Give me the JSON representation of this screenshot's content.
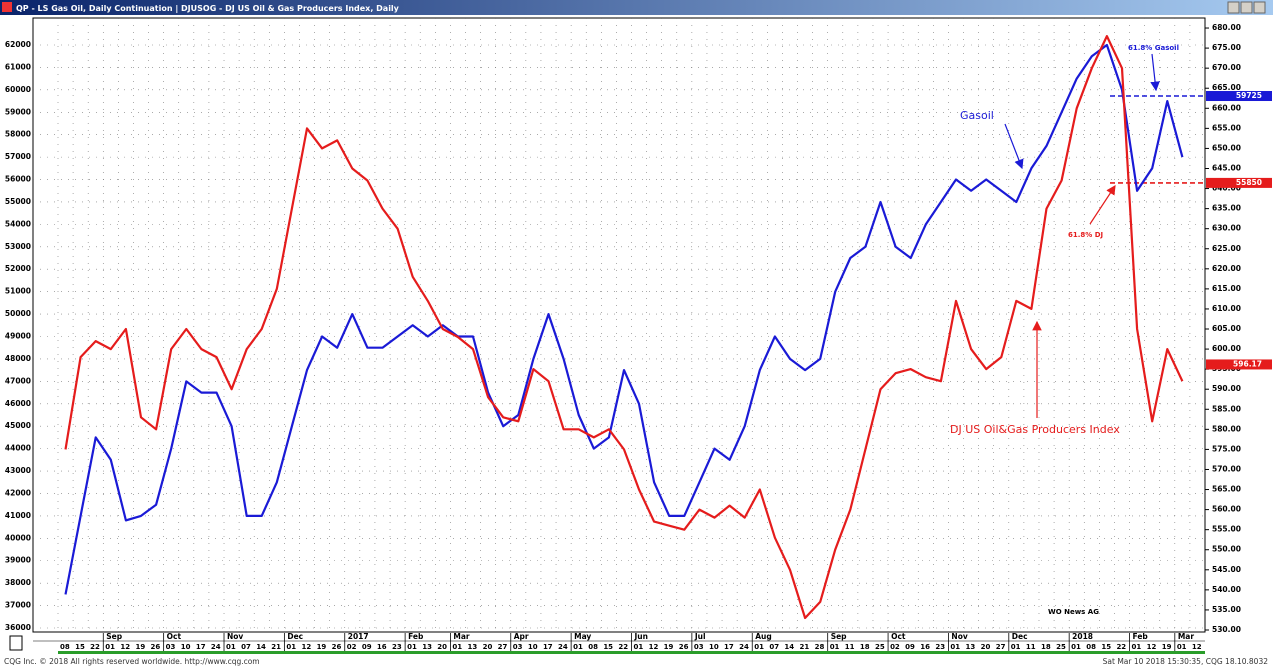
{
  "chart_data": {
    "type": "line",
    "series": [
      {
        "name": "QP - LS Gas Oil, Daily Continuation",
        "color": "#1a1ad6",
        "axis": "y",
        "values": [
          37500,
          41000,
          44500,
          43500,
          40800,
          41000,
          41500,
          44000,
          47000,
          46500,
          46500,
          45000,
          41000,
          41000,
          42500,
          45000,
          47500,
          49000,
          48500,
          50000,
          48500,
          48500,
          49000,
          49500,
          49000,
          49500,
          49000,
          49000,
          46500,
          45000,
          45500,
          48000,
          50000,
          48000,
          45500,
          44000,
          44500,
          47500,
          46000,
          42500,
          41000,
          41000,
          42500,
          44000,
          43500,
          45000,
          47500,
          49000,
          48000,
          47500,
          48000,
          51000,
          52500,
          53000,
          55000,
          53000,
          52500,
          54000,
          55000,
          56000,
          55500,
          56000,
          55500,
          55000,
          56500,
          57500,
          59000,
          60500,
          61500,
          62000,
          60000,
          55500,
          56500,
          59500,
          57000,
          null
        ]
      },
      {
        "name": "DJUSOG - DJ US Oil & Gas Producers Index, Daily",
        "color": "#e51c1c",
        "axis": "y2",
        "values": [
          575,
          598,
          602,
          600,
          605,
          583,
          580,
          600,
          605,
          600,
          598,
          590,
          600,
          605,
          615,
          635,
          655,
          650,
          652,
          645,
          642,
          635,
          630,
          618,
          612,
          605,
          603,
          600,
          588,
          583,
          582,
          595,
          592,
          580,
          580,
          578,
          580,
          575,
          565,
          557,
          556,
          555,
          560,
          558,
          561,
          558,
          565,
          553,
          545,
          533,
          537,
          550,
          560,
          575,
          590,
          594,
          595,
          593,
          592,
          612,
          600,
          595,
          598,
          612,
          610,
          635,
          642,
          660,
          670,
          678,
          670,
          605,
          582,
          600,
          592,
          null
        ]
      }
    ],
    "x": [
      "08",
      "15",
      "22",
      "01",
      "12",
      "19",
      "26",
      "03",
      "10",
      "17",
      "24",
      "01",
      "07",
      "14",
      "21",
      "01",
      "12",
      "19",
      "26",
      "02",
      "09",
      "16",
      "23",
      "01",
      "13",
      "20",
      "01",
      "13",
      "20",
      "27",
      "03",
      "10",
      "17",
      "24",
      "01",
      "08",
      "15",
      "22",
      "01",
      "12",
      "19",
      "26",
      "03",
      "10",
      "17",
      "24",
      "01",
      "07",
      "14",
      "21",
      "28",
      "01",
      "11",
      "18",
      "25",
      "02",
      "09",
      "16",
      "23",
      "01",
      "13",
      "20",
      "27",
      "01",
      "11",
      "18",
      "25",
      "01",
      "08",
      "15",
      "22",
      "01",
      "12",
      "19",
      "01",
      "12"
    ],
    "month_ticks": [
      {
        "value": 3,
        "label": "Sep"
      },
      {
        "value": 7,
        "label": "Oct"
      },
      {
        "value": 11,
        "label": "Nov"
      },
      {
        "value": 15,
        "label": "Dec"
      },
      {
        "value": 19,
        "label": "2017"
      },
      {
        "value": 23,
        "label": "Feb"
      },
      {
        "value": 26,
        "label": "Mar"
      },
      {
        "value": 30,
        "label": "Apr"
      },
      {
        "value": 34,
        "label": "May"
      },
      {
        "value": 38,
        "label": "Jun"
      },
      {
        "value": 42,
        "label": "Jul"
      },
      {
        "value": 46,
        "label": "Aug"
      },
      {
        "value": 51,
        "label": "Sep"
      },
      {
        "value": 55,
        "label": "Oct"
      },
      {
        "value": 59,
        "label": "Nov"
      },
      {
        "value": 63,
        "label": "Dec"
      },
      {
        "value": 67,
        "label": "2018"
      },
      {
        "value": 71,
        "label": "Feb"
      },
      {
        "value": 74,
        "label": "Mar"
      }
    ],
    "ylim": [
      35822,
      63204
    ],
    "yticks": [
      36000,
      37000,
      38000,
      39000,
      40000,
      41000,
      42000,
      43000,
      44000,
      45000,
      46000,
      47000,
      48000,
      49000,
      50000,
      51000,
      52000,
      53000,
      54000,
      55000,
      56000,
      57000,
      58000,
      59000,
      60000,
      61000,
      62000
    ],
    "y2lim": [
      529.5,
      682.5
    ],
    "y2ticks": [
      {
        "value": 530,
        "label": "530.00"
      },
      {
        "value": 535,
        "label": "535.00"
      },
      {
        "value": 540,
        "label": "540.00"
      },
      {
        "value": 545,
        "label": "545.00"
      },
      {
        "value": 550,
        "label": "550.00"
      },
      {
        "value": 555,
        "label": "555.00"
      },
      {
        "value": 560,
        "label": "560.00"
      },
      {
        "value": 565,
        "label": "565.00"
      },
      {
        "value": 570,
        "label": "570.00"
      },
      {
        "value": 575,
        "label": "575.00"
      },
      {
        "value": 580,
        "label": "580.00"
      },
      {
        "value": 585,
        "label": "585.00"
      },
      {
        "value": 590,
        "label": "590.00"
      },
      {
        "value": 595,
        "label": "595.00"
      },
      {
        "value": 600,
        "label": "600.00"
      },
      {
        "value": 605,
        "label": "605.00"
      },
      {
        "value": 610,
        "label": "610.00"
      },
      {
        "value": 615,
        "label": "615.00"
      },
      {
        "value": 620,
        "label": "620.00"
      },
      {
        "value": 625,
        "label": "625.00"
      },
      {
        "value": 630,
        "label": "630.00"
      },
      {
        "value": 635,
        "label": "635.00"
      },
      {
        "value": 640,
        "label": "640.00"
      },
      {
        "value": 645,
        "label": "645.00"
      },
      {
        "value": 650,
        "label": "650.00"
      },
      {
        "value": 655,
        "label": "655.00"
      },
      {
        "value": 660,
        "label": "660.00"
      },
      {
        "value": 665,
        "label": "665.00"
      },
      {
        "value": 670,
        "label": "670.00"
      },
      {
        "value": 675,
        "label": "675.00"
      },
      {
        "value": 680,
        "label": "680.00"
      }
    ],
    "reference_lines": [
      {
        "value": 59725,
        "color": "#1a1ad6"
      },
      {
        "value": 55850,
        "color": "#e51c1c"
      }
    ],
    "last_value": 596.17,
    "grid": true,
    "annotations": [
      "Gasoil",
      "61.8% Gasoil",
      "61.8% DJ",
      "DJ US Oil&Gas Producers Index",
      "WO News AG"
    ]
  },
  "footer": {
    "left": "CQG Inc. © 2018 All rights reserved worldwide. http://www.cqg.com",
    "right": "Sat Mar 10 2018 15:30:35, CQG 18.10.8032"
  }
}
